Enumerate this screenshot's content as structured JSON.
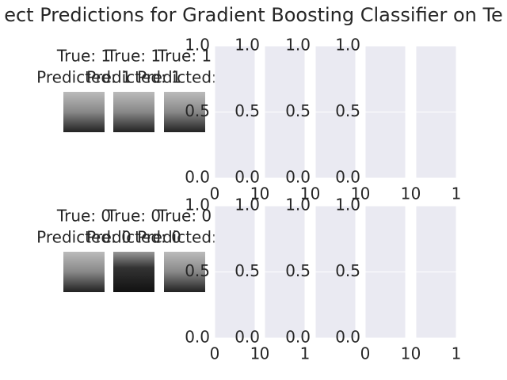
{
  "chart_data": {
    "type": "image-grid",
    "title": "ect Predictions for Gradient Boosting Classifier on Te",
    "rows": [
      {
        "images": [
          {
            "title_true": "True: 1",
            "title_pred": "Predicted: 1"
          },
          {
            "title_true": "True: 1",
            "title_pred": "Predicted: 1"
          },
          {
            "title_true": "True: 1",
            "title_pred": "Predicted: 1"
          }
        ]
      },
      {
        "images": [
          {
            "title_true": "True: 0",
            "title_pred": "Predicted: 0"
          },
          {
            "title_true": "True: 0",
            "title_pred": "Predicted: 0"
          },
          {
            "title_true": "True: 0",
            "title_pred": "Predicted: 0"
          }
        ]
      }
    ],
    "xlim": [
      0,
      1
    ],
    "ylim": [
      0,
      1
    ],
    "xticks": [
      0,
      1
    ],
    "yticks": [
      {
        "value": 0,
        "label": "0.0"
      },
      {
        "value": 0.5,
        "label": "0.5"
      },
      {
        "value": 1,
        "label": "1.0"
      }
    ],
    "grid": true
  }
}
